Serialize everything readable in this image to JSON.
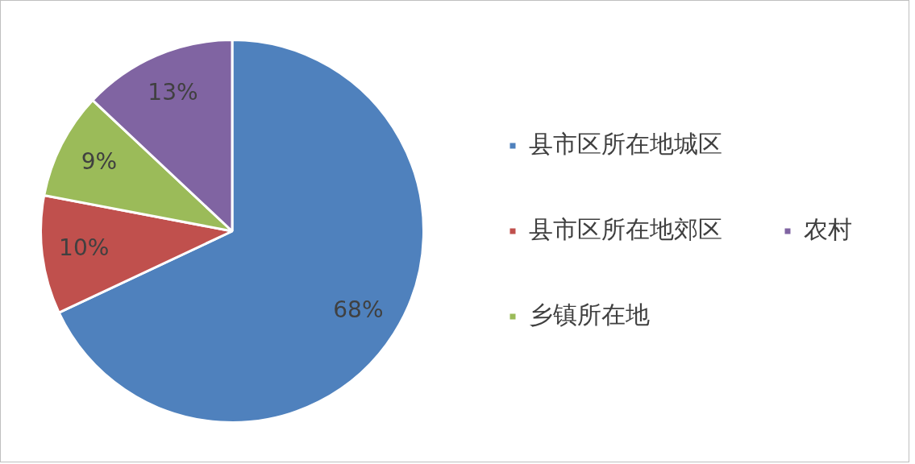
{
  "chart_data": {
    "type": "pie",
    "categories": [
      "县市区所在地城区",
      "县市区所在地郊区",
      "乡镇所在地",
      "农村"
    ],
    "values": [
      68,
      10,
      9,
      13
    ],
    "colors": [
      "#4f81bd",
      "#c0504d",
      "#9bbb59",
      "#8064a2"
    ],
    "value_labels": [
      "68%",
      "10%",
      "9%",
      "13%"
    ],
    "legend": "right"
  }
}
